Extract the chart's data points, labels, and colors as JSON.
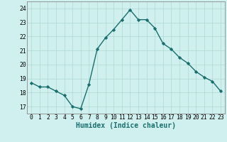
{
  "xlabel": "Humidex (Indice chaleur)",
  "x": [
    0,
    1,
    2,
    3,
    4,
    5,
    6,
    7,
    8,
    9,
    10,
    11,
    12,
    13,
    14,
    15,
    16,
    17,
    18,
    19,
    20,
    21,
    22,
    23
  ],
  "y": [
    18.7,
    18.4,
    18.4,
    18.1,
    17.8,
    17.0,
    16.85,
    18.6,
    21.1,
    21.9,
    22.5,
    23.2,
    23.9,
    23.2,
    23.2,
    22.6,
    21.5,
    21.1,
    20.5,
    20.1,
    19.5,
    19.1,
    18.8,
    18.1
  ],
  "line_color": "#1a6e6e",
  "marker": "D",
  "marker_size": 2.2,
  "line_width": 1.0,
  "bg_color": "#cff0ee",
  "grid_color_minor": "#c0e0dc",
  "grid_color_major": "#b0d8d4",
  "ylim": [
    16.5,
    24.5
  ],
  "yticks": [
    17,
    18,
    19,
    20,
    21,
    22,
    23,
    24
  ],
  "xlim": [
    -0.5,
    23.5
  ],
  "label_fontsize": 7.0,
  "tick_fontsize": 5.8
}
